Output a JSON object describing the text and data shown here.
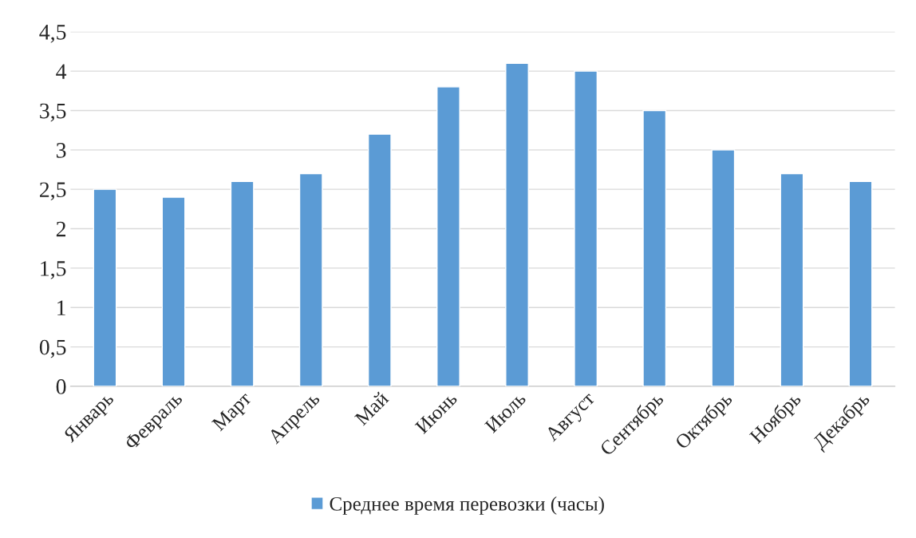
{
  "chart_data": {
    "type": "bar",
    "categories": [
      "Январь",
      "Февраль",
      "Март",
      "Апрель",
      "Май",
      "Июнь",
      "Июль",
      "Август",
      "Сентябрь",
      "Октябрь",
      "Ноябрь",
      "Декабрь"
    ],
    "series": [
      {
        "name": "Среднее время перевозки (часы)",
        "color": "#5b9bd5",
        "values": [
          2.5,
          2.4,
          2.6,
          2.7,
          3.2,
          3.8,
          4.1,
          4.0,
          3.5,
          3.0,
          2.7,
          2.6
        ]
      }
    ],
    "ylim": [
      0,
      4.5
    ],
    "yticks": [
      0,
      {
        "value": 0.5,
        "label": "0,5"
      },
      1,
      {
        "value": 1.5,
        "label": "1,5"
      },
      2,
      {
        "value": 2.5,
        "label": "2,5"
      },
      3,
      {
        "value": 3.5,
        "label": "3,5"
      },
      4,
      {
        "value": 4.5,
        "label": "4,5"
      }
    ],
    "grid": "y",
    "legend": "bottom"
  }
}
